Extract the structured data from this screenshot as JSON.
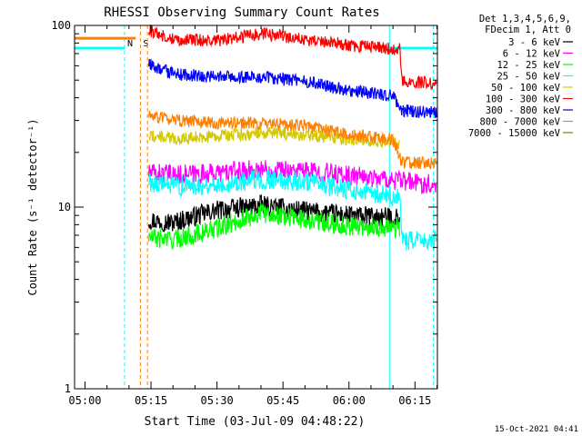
{
  "chart_data": {
    "type": "line",
    "title": "RHESSI Observing Summary Count Rates",
    "xlabel": "Start Time (03-Jul-09 04:48:22)",
    "ylabel": "Count Rate (s⁻¹ detector⁻¹)",
    "yscale": "log",
    "ylim": [
      1,
      100
    ],
    "yticks": [
      {
        "value": 1,
        "label": "1"
      },
      {
        "value": 10,
        "label": "10"
      },
      {
        "value": 100,
        "label": "100"
      }
    ],
    "xlim_minutes": [
      -2.37,
      80.1
    ],
    "xticks": [
      {
        "value": 0,
        "label": "05:00"
      },
      {
        "value": 15,
        "label": "05:15"
      },
      {
        "value": 30,
        "label": "05:30"
      },
      {
        "value": 45,
        "label": "05:45"
      },
      {
        "value": 60,
        "label": "06:00"
      },
      {
        "value": 75,
        "label": "06:15"
      }
    ],
    "legend_header": [
      "Det 1,3,4,5,6,9,",
      "FDecim 1, Att 0"
    ],
    "legend_position": "right",
    "series": [
      {
        "name": "3 - 6 keV",
        "color": "#000000",
        "points": [
          [
            14.5,
            8.5
          ],
          [
            20,
            8.2
          ],
          [
            30,
            9.6
          ],
          [
            40,
            10.2
          ],
          [
            50,
            9.5
          ],
          [
            60,
            9.0
          ],
          [
            71.5,
            8.7
          ]
        ]
      },
      {
        "name": "6 - 12 keV",
        "color": "#ff00ff",
        "points": [
          [
            14.5,
            15.5
          ],
          [
            20,
            15.0
          ],
          [
            30,
            15.4
          ],
          [
            40,
            16.2
          ],
          [
            50,
            15.8
          ],
          [
            60,
            14.9
          ],
          [
            66,
            14.5
          ],
          [
            72,
            13.9
          ],
          [
            80,
            13.3
          ]
        ]
      },
      {
        "name": "12 - 25 keV",
        "color": "#00ff00",
        "points": [
          [
            14.5,
            6.8
          ],
          [
            20,
            6.6
          ],
          [
            30,
            7.6
          ],
          [
            40,
            9.3
          ],
          [
            50,
            8.6
          ],
          [
            60,
            7.9
          ],
          [
            71.5,
            7.6
          ]
        ]
      },
      {
        "name": "25 - 50 keV",
        "color": "#00ffff",
        "points": [
          [
            14.5,
            13.8
          ],
          [
            20,
            13.0
          ],
          [
            30,
            13.3
          ],
          [
            40,
            14.2
          ],
          [
            50,
            13.8
          ],
          [
            60,
            12.4
          ],
          [
            71.5,
            11.3
          ],
          [
            72,
            6.5
          ],
          [
            80,
            6.5
          ]
        ]
      },
      {
        "name": "50 - 100 keV",
        "color": "#d4c800",
        "points": [
          [
            14.5,
            24.8
          ],
          [
            20,
            23.8
          ],
          [
            30,
            24.6
          ],
          [
            40,
            25.6
          ],
          [
            50,
            25.0
          ],
          [
            60,
            23.7
          ],
          [
            71.5,
            22.6
          ]
        ]
      },
      {
        "name": "100 - 300 keV",
        "color": "#ff0000",
        "points": [
          [
            14.5,
            94
          ],
          [
            20,
            84
          ],
          [
            30,
            82
          ],
          [
            40,
            90
          ],
          [
            50,
            84
          ],
          [
            60,
            78
          ],
          [
            71.5,
            74
          ],
          [
            72,
            49
          ],
          [
            80,
            48
          ]
        ]
      },
      {
        "name": "300 - 800 keV",
        "color": "#0000ff",
        "points": [
          [
            14.5,
            61
          ],
          [
            20,
            54
          ],
          [
            30,
            52
          ],
          [
            40,
            52
          ],
          [
            50,
            49
          ],
          [
            60,
            44
          ],
          [
            70,
            41
          ],
          [
            72,
            34
          ],
          [
            80,
            33
          ]
        ]
      },
      {
        "name": "800 - 7000 keV",
        "color": "#ff8000",
        "points": [
          [
            14.5,
            32
          ],
          [
            20,
            30
          ],
          [
            30,
            29
          ],
          [
            40,
            29
          ],
          [
            50,
            28
          ],
          [
            60,
            25
          ],
          [
            70,
            23.5
          ],
          [
            72,
            17.5
          ],
          [
            80,
            17.5
          ]
        ]
      },
      {
        "name": "7000 - 15000 keV",
        "color": "#808000",
        "points": []
      }
    ],
    "pre_segments": [
      {
        "name": "800 - 7000 keV",
        "color": "#ff8000",
        "x": [
          -2.37,
          11.5
        ],
        "y": 85
      },
      {
        "name": "25 - 50 keV",
        "color": "#00ffff",
        "x": [
          -2.37,
          9.0
        ],
        "y": 75
      },
      {
        "name": "25 - 50 keV",
        "color": "#00ffff",
        "x": [
          69.2,
          80.1
        ],
        "y": 75
      }
    ],
    "event_markers": [
      {
        "label": "N",
        "color": "#00ffff",
        "x": 9.0,
        "style": "dashed"
      },
      {
        "label": "S",
        "color": "#ff8000",
        "x": 12.6,
        "style": "dashed"
      },
      {
        "label": "",
        "color": "#ff8000",
        "x": 14.2,
        "style": "dashed"
      },
      {
        "label": "",
        "color": "#00ffff",
        "x": 69.2,
        "style": "solid"
      },
      {
        "label": "",
        "color": "#00ffff",
        "x": 79.2,
        "style": "dashed"
      }
    ]
  },
  "footer_timestamp": "15-Oct-2021 04:41"
}
